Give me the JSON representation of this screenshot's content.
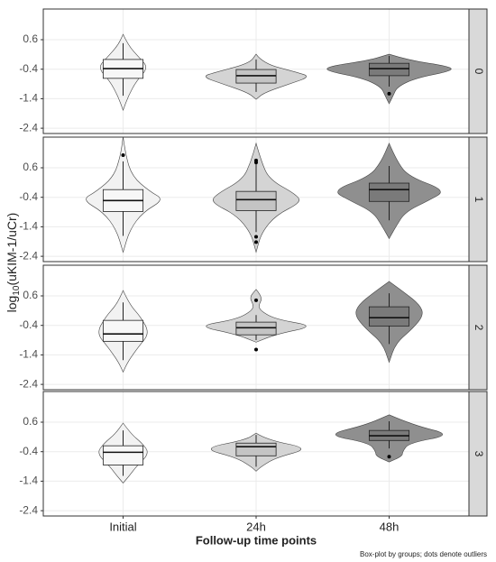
{
  "chart_data": {
    "type": "violin",
    "ylabel": [
      "log",
      "10",
      "(uKIM-1/uCr)"
    ],
    "xlabel": "Follow-up time points",
    "caption": "Box-plot by groups; dots denote outliers",
    "categories": [
      "Initial",
      "24h",
      "48h"
    ],
    "colors": [
      "#f2f2f2",
      "#d4d4d4",
      "#8f8f8f"
    ],
    "box_colors": [
      "#f7f7f7",
      "#c4c4c4",
      "#7a7a7a"
    ],
    "ylim": [
      -2.58,
      1.64
    ],
    "yticks": [
      0.6,
      -0.4,
      -1.4,
      -2.4
    ],
    "grid": true,
    "facets": [
      {
        "label": "0",
        "groups": [
          {
            "violin": {
              "y": [
                0.78,
                0.4,
                0,
                -0.35,
                -0.8,
                -1.3,
                -1.79
              ],
              "width": [
                0,
                0.04,
                0.12,
                0.19,
                0.1,
                0.04,
                0
              ]
            },
            "box": {
              "whisker_high": 0.48,
              "q3": -0.07,
              "median": -0.38,
              "q1": -0.71,
              "whisker_low": -1.3
            }
          },
          {
            "violin": {
              "y": [
                0.11,
                -0.2,
                -0.5,
                -0.65,
                -0.9,
                -1.2,
                -1.42
              ],
              "width": [
                0,
                0.05,
                0.3,
                0.41,
                0.25,
                0.06,
                0
              ]
            },
            "box": {
              "whisker_high": -0.07,
              "q3": -0.41,
              "median": -0.62,
              "q1": -0.87,
              "whisker_low": -1.17
            }
          },
          {
            "violin": {
              "y": [
                0.11,
                -0.1,
                -0.3,
                -0.45,
                -0.7,
                -1.0,
                -1.3,
                -1.57
              ],
              "width": [
                0,
                0.15,
                0.45,
                0.48,
                0.2,
                0.06,
                0.03,
                0
              ]
            },
            "box": {
              "whisker_high": 0.05,
              "q3": -0.2,
              "median": -0.38,
              "q1": -0.62,
              "whisker_low": -0.99
            },
            "outliers": [
              -1.23
            ]
          }
        ]
      },
      {
        "label": "1",
        "groups": [
          {
            "violin": {
              "y": [
                1.65,
                1.0,
                0.3,
                -0.2,
                -0.48,
                -0.9,
                -1.5,
                -2.26
              ],
              "width": [
                0,
                0.02,
                0.07,
                0.2,
                0.31,
                0.15,
                0.05,
                0
              ]
            },
            "box": {
              "whisker_high": 0.82,
              "q3": -0.14,
              "median": -0.51,
              "q1": -0.88,
              "whisker_low": -1.71
            },
            "outliers": [
              1.03
            ]
          },
          {
            "violin": {
              "y": [
                1.43,
                0.8,
                0.2,
                -0.3,
                -0.57,
                -1.0,
                -1.6,
                -2.26
              ],
              "width": [
                0,
                0.04,
                0.1,
                0.3,
                0.34,
                0.15,
                0.04,
                0
              ]
            },
            "box": {
              "whisker_high": 0.82,
              "q3": -0.2,
              "median": -0.48,
              "q1": -0.85,
              "whisker_low": -1.58
            },
            "outliers": [
              0.85,
              0.78,
              -1.74,
              -1.92
            ]
          },
          {
            "violin": {
              "y": [
                1.43,
                0.8,
                0.3,
                -0.17,
                -0.5,
                -0.9,
                -1.4,
                -1.8
              ],
              "width": [
                0,
                0.06,
                0.15,
                0.43,
                0.3,
                0.12,
                0.05,
                0
              ]
            },
            "box": {
              "whisker_high": 0.66,
              "q3": 0.08,
              "median": -0.14,
              "q1": -0.54,
              "whisker_low": -1.18
            }
          }
        ]
      },
      {
        "label": "2",
        "groups": [
          {
            "violin": {
              "y": [
                0.78,
                0.3,
                -0.1,
                -0.66,
                -1.1,
                -1.6,
                -1.98
              ],
              "width": [
                0,
                0.05,
                0.13,
                0.2,
                0.12,
                0.04,
                0
              ]
            },
            "box": {
              "whisker_high": 0.38,
              "q3": -0.23,
              "median": -0.69,
              "q1": -0.94,
              "whisker_low": -1.58
            }
          },
          {
            "violin": {
              "y": [
                0.82,
                0.55,
                0.3,
                0.1,
                -0.2,
                -0.42,
                -0.7,
                -0.97
              ],
              "width": [
                0,
                0.05,
                0.02,
                0.03,
                0.15,
                0.45,
                0.15,
                0
              ]
            },
            "box": {
              "whisker_high": -0.05,
              "q3": -0.29,
              "median": -0.48,
              "q1": -0.72,
              "whisker_low": -0.9
            },
            "outliers": [
              0.45,
              -1.22
            ]
          },
          {
            "violin": {
              "y": [
                1.09,
                0.7,
                0.3,
                -0.05,
                -0.5,
                -1.0,
                -1.65
              ],
              "width": [
                0,
                0.12,
                0.23,
                0.26,
                0.18,
                0.05,
                0
              ]
            },
            "box": {
              "whisker_high": 0.69,
              "q3": 0.23,
              "median": -0.14,
              "q1": -0.42,
              "whisker_low": -1.03
            }
          }
        ]
      },
      {
        "label": "3",
        "groups": [
          {
            "violin": {
              "y": [
                0.57,
                0.2,
                -0.1,
                -0.45,
                -0.9,
                -1.2,
                -1.46
              ],
              "width": [
                0,
                0.06,
                0.14,
                0.2,
                0.1,
                0.05,
                0
              ]
            },
            "box": {
              "whisker_high": 0.32,
              "q3": -0.2,
              "median": -0.42,
              "q1": -0.85,
              "whisker_low": -1.22
            }
          },
          {
            "violin": {
              "y": [
                0.23,
                0,
                -0.29,
                -0.6,
                -0.9,
                -1.06
              ],
              "width": [
                0,
                0.08,
                0.41,
                0.15,
                0.04,
                0
              ]
            },
            "box": {
              "whisker_high": 0.17,
              "q3": -0.11,
              "median": -0.23,
              "q1": -0.54,
              "whisker_low": -0.91
            }
          },
          {
            "violin": {
              "y": [
                0.85,
                0.5,
                0.17,
                -0.1,
                -0.4,
                -0.55,
                -0.75
              ],
              "width": [
                0,
                0.18,
                0.48,
                0.15,
                0.1,
                0.1,
                0
              ]
            },
            "box": {
              "whisker_high": 0.63,
              "q3": 0.32,
              "median": 0.14,
              "q1": -0.02,
              "whisker_low": -0.29
            },
            "outliers": [
              -0.57
            ]
          }
        ]
      }
    ]
  }
}
